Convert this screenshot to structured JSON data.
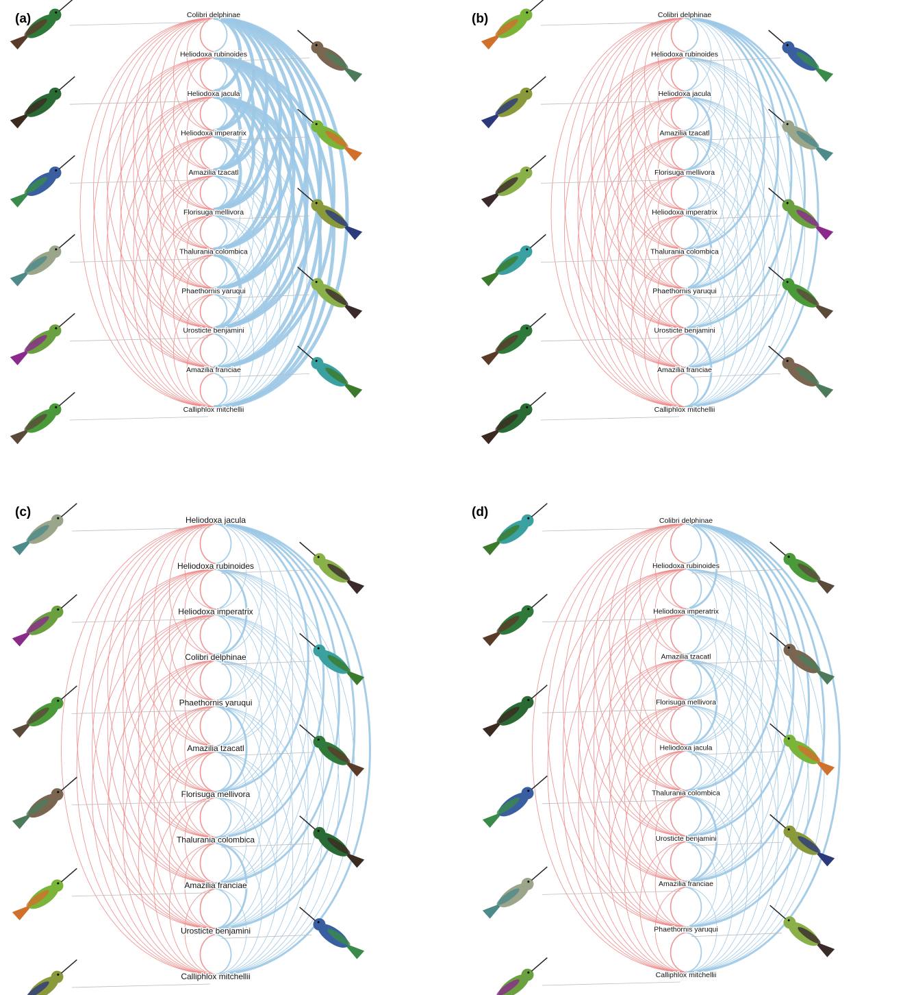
{
  "panels": [
    {
      "label": "(a)",
      "species": [
        "Colibri delphinae",
        "Heliodoxa rubinoides",
        "Heliodoxa jacula",
        "Heliodoxa imperatrix",
        "Amazilia tzacatl",
        "Florisuga mellivora",
        "Thalurania colombica",
        "Phaethornis yaruqui",
        "Urosticte benjamini",
        "Amazilia franciae",
        "Calliphlox mitchellii"
      ]
    },
    {
      "label": "(b)",
      "species": [
        "Colibri delphinae",
        "Heliodoxa rubinoides",
        "Heliodoxa jacula",
        "Amazilia tzacatl",
        "Florisuga mellivora",
        "Heliodoxa imperatrix",
        "Thalurania colombica",
        "Phaethornis yaruqui",
        "Urosticte benjamini",
        "Amazilia franciae",
        "Calliphlox mitchellii"
      ]
    },
    {
      "label": "(c)",
      "species": [
        "Heliodoxa jacula",
        "Heliodoxa rubinoides",
        "Heliodoxa imperatrix",
        "Colibri delphinae",
        "Phaethornis yaruqui",
        "Amazilia tzacatl",
        "Florisuga mellivora",
        "Thalurania colombica",
        "Amazilia franciae",
        "Urosticte benjamini",
        "Calliphlox mitchellii"
      ]
    },
    {
      "label": "(d)",
      "species": [
        "Colibri delphinae",
        "Heliodoxa rubinoides",
        "Heliodoxa imperatrix",
        "Amazilia tzacatl",
        "Florisuga mellivora",
        "Heliodoxa jacula",
        "Thalurania colombica",
        "Urosticte benjamini",
        "Amazilia franciae",
        "Phaethornis yaruqui",
        "Calliphlox mitchellii"
      ]
    }
  ]
}
